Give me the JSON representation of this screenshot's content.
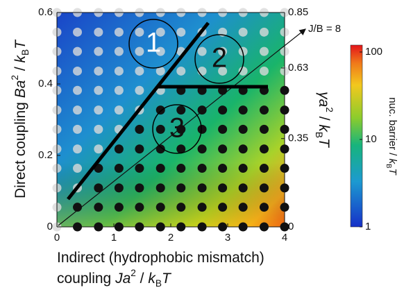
{
  "chart_data": {
    "type": "phase-map",
    "x_label_lines": [
      [
        "Indirect (hydrophobic mismatch)"
      ],
      [
        "coupling ",
        "Ja",
        "2",
        " / ",
        "k",
        "B",
        "T"
      ]
    ],
    "y_label": [
      "Direct coupling ",
      "Ba",
      "2",
      " / ",
      "k",
      "B",
      "T"
    ],
    "y2_label": [
      "γa",
      "2",
      " / ",
      "k",
      "B",
      "T"
    ],
    "xlim": [
      0,
      4
    ],
    "xticks": [
      0,
      1,
      2,
      3,
      4
    ],
    "ylim": [
      0,
      0.6
    ],
    "yticks": [
      0,
      0.2,
      0.4,
      0.6
    ],
    "y2lim": [
      0,
      0.85
    ],
    "y2ticks": [
      0,
      0.35,
      0.63,
      0.85
    ],
    "line_label": "J/B = 8",
    "regions": [
      "1",
      "2",
      "3"
    ],
    "colorbar": {
      "label": [
        "nuc. barrier / ",
        "k",
        "B",
        "T"
      ],
      "lim": [
        1,
        120
      ],
      "ticks": [
        1,
        10,
        100
      ],
      "log": true
    },
    "dots": {
      "x": [
        0,
        0.36,
        0.73,
        1.09,
        1.45,
        1.82,
        2.18,
        2.55,
        2.91,
        3.27,
        3.64,
        4.0
      ],
      "y": [
        0,
        0.055,
        0.109,
        0.164,
        0.218,
        0.273,
        0.327,
        0.382,
        0.436,
        0.491,
        0.545,
        0.6
      ],
      "state": [
        [
          0,
          1,
          1,
          1,
          1,
          1,
          1,
          1,
          1,
          1,
          1,
          1
        ],
        [
          0,
          1,
          1,
          1,
          1,
          1,
          1,
          1,
          1,
          1,
          1,
          1
        ],
        [
          0,
          0,
          1,
          1,
          1,
          1,
          1,
          1,
          1,
          1,
          1,
          1
        ],
        [
          0,
          0,
          1,
          1,
          1,
          1,
          1,
          1,
          1,
          1,
          1,
          1
        ],
        [
          0,
          0,
          0,
          1,
          1,
          1,
          1,
          1,
          1,
          1,
          1,
          1
        ],
        [
          0,
          0,
          0,
          0,
          1,
          1,
          1,
          1,
          1,
          1,
          1,
          1
        ],
        [
          0,
          0,
          0,
          0,
          0,
          1,
          1,
          1,
          1,
          1,
          1,
          1
        ],
        [
          0,
          0,
          0,
          0,
          0,
          0,
          1,
          1,
          1,
          1,
          1,
          1
        ],
        [
          0,
          0,
          0,
          0,
          0,
          0,
          0,
          0,
          0,
          0,
          0,
          0
        ],
        [
          0,
          0,
          0,
          0,
          0,
          0,
          0,
          0,
          0,
          0,
          0,
          0
        ],
        [
          0,
          0,
          0,
          0,
          0,
          0,
          0,
          0,
          0,
          0,
          0,
          0
        ],
        [
          0,
          0,
          0,
          0,
          0,
          0,
          0,
          0,
          0,
          0,
          0,
          0
        ]
      ],
      "colors": [
        "#d9d9d9",
        "#111111"
      ]
    }
  }
}
